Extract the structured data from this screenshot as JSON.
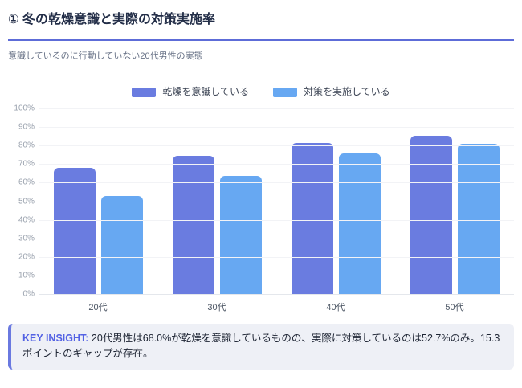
{
  "page": {
    "title": "① 冬の乾燥意識と実際の対策実施率",
    "subtitle": "意識しているのに行動していない20代男性の実態"
  },
  "chart_data": {
    "type": "bar",
    "categories": [
      "20代",
      "30代",
      "40代",
      "50代"
    ],
    "series": [
      {
        "name": "乾燥を意識している",
        "color": "#6a7ce0",
        "values": [
          68.0,
          74.5,
          81.2,
          85.3
        ]
      },
      {
        "name": "対策を実施している",
        "color": "#67a8f2",
        "values": [
          52.7,
          63.8,
          75.9,
          81.0
        ]
      }
    ],
    "yticks": [
      "0%",
      "10%",
      "20%",
      "30%",
      "40%",
      "50%",
      "60%",
      "70%",
      "80%",
      "90%",
      "100%"
    ],
    "ylim": [
      0,
      100
    ],
    "grid": true,
    "legend_position": "top",
    "title": "① 冬の乾燥意識と実際の対策実施率",
    "subtitle": "意識しているのに行動していない20代男性の実態",
    "xlabel": "",
    "ylabel": ""
  },
  "insight": {
    "label": "KEY INSIGHT:",
    "text": " 20代男性は68.0%が乾燥を意識しているものの、実際に対策しているのは52.7%のみ。15.3ポイントのギャップが存在。"
  },
  "colors": {
    "accent_rule": "#5d6cd8",
    "series_aware": "#6a7ce0",
    "series_action": "#67a8f2",
    "insight_border": "#6a79e0",
    "insight_bg": "#eef0f6"
  }
}
